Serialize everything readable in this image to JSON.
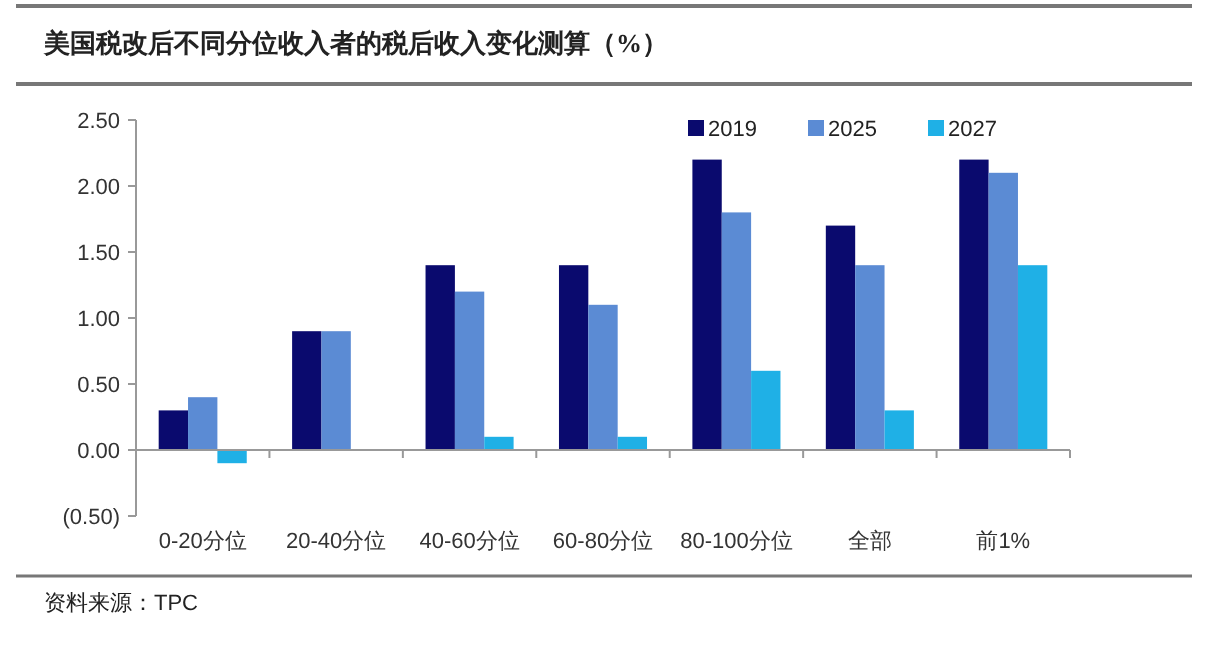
{
  "chart_data": {
    "type": "bar",
    "title": "美国税改后不同分位收入者的税后收入变化测算（%）",
    "categories": [
      "0-20分位",
      "20-40分位",
      "40-60分位",
      "60-80分位",
      "80-100分位",
      "全部",
      "前1%"
    ],
    "series": [
      {
        "name": "2019",
        "color": "#0a0a6e",
        "values": [
          0.3,
          0.9,
          1.4,
          1.4,
          2.2,
          1.7,
          2.2
        ]
      },
      {
        "name": "2025",
        "color": "#5b8bd4",
        "values": [
          0.4,
          0.9,
          1.2,
          1.1,
          1.8,
          1.4,
          2.1
        ]
      },
      {
        "name": "2027",
        "color": "#1fb0e6",
        "values": [
          -0.1,
          null,
          0.1,
          0.1,
          0.6,
          0.3,
          1.4
        ]
      }
    ],
    "ylim": [
      -0.5,
      2.5
    ],
    "yticks": [
      {
        "value": -0.5,
        "label": "(0.50)"
      },
      {
        "value": 0,
        "label": "0.00"
      },
      {
        "value": 0.5,
        "label": "0.50"
      },
      {
        "value": 1,
        "label": "1.00"
      },
      {
        "value": 1.5,
        "label": "1.50"
      },
      {
        "value": 2,
        "label": "2.00"
      },
      {
        "value": 2.5,
        "label": "2.50"
      }
    ],
    "legend": "top right",
    "annotations": [
      "资料来源：TPC"
    ]
  }
}
